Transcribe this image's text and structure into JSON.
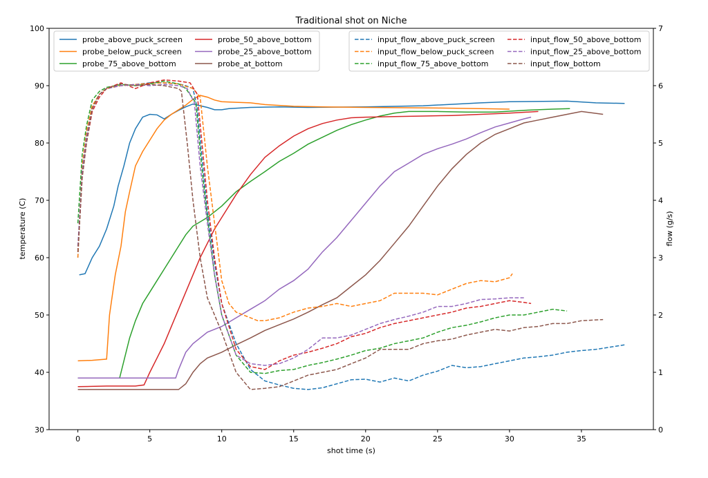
{
  "chart_data": {
    "type": "line",
    "title": "Traditional shot on Niche",
    "xlabel": "shot time (s)",
    "ylabel": "temperature (C)",
    "y2label": "flow (g/s)",
    "xlim": [
      -2,
      40
    ],
    "ylim": [
      30,
      100
    ],
    "y2lim": [
      0,
      7
    ],
    "xticks": [
      0,
      5,
      10,
      15,
      20,
      25,
      30,
      35
    ],
    "yticks": [
      30,
      40,
      50,
      60,
      70,
      80,
      90,
      100
    ],
    "y2ticks": [
      0,
      1,
      2,
      3,
      4,
      5,
      6,
      7
    ],
    "grid": false,
    "legend_left": "top-left",
    "legend_right": "top-right",
    "series": [
      {
        "name": "probe_above_puck_screen",
        "axis": "left",
        "color": "#1f77b4",
        "style": "solid",
        "x": [
          0.1,
          0.5,
          1,
          1.5,
          2,
          2.5,
          2.8,
          3.2,
          3.6,
          4,
          4.5,
          5,
          5.5,
          6,
          6.5,
          7,
          7.5,
          8,
          8.5,
          9,
          9.5,
          10,
          10.5,
          12,
          14,
          16,
          20,
          24,
          28,
          30,
          34,
          36,
          38
        ],
        "y": [
          57,
          57.2,
          60,
          62,
          65,
          69,
          72.5,
          76,
          80,
          82.5,
          84.5,
          85,
          84.9,
          84.2,
          85,
          85.7,
          86.3,
          86.8,
          86.5,
          86.2,
          85.8,
          85.8,
          86,
          86.2,
          86.3,
          86.2,
          86.3,
          86.5,
          87,
          87.2,
          87.3,
          87,
          86.9
        ]
      },
      {
        "name": "probe_below_puck_screen",
        "axis": "left",
        "color": "#ff7f0e",
        "style": "solid",
        "x": [
          0,
          1,
          2,
          2.2,
          2.6,
          3,
          3.3,
          3.6,
          4,
          4.5,
          5,
          5.5,
          6,
          6.5,
          7,
          7.5,
          8,
          8.5,
          9,
          9.5,
          10,
          11,
          12,
          13,
          15,
          17,
          20,
          25,
          28,
          30
        ],
        "y": [
          42,
          42.1,
          42.3,
          50,
          57,
          62,
          68,
          71.5,
          76,
          78.5,
          80.5,
          82.5,
          84,
          85,
          85.8,
          86.6,
          87.6,
          88.3,
          88,
          87.5,
          87.2,
          87.1,
          87,
          86.7,
          86.4,
          86.3,
          86.2,
          86.1,
          86,
          85.9
        ]
      },
      {
        "name": "probe_75_above_bottom",
        "axis": "left",
        "color": "#2ca02c",
        "style": "solid",
        "x": [
          0,
          2,
          2.9,
          3.2,
          3.6,
          4,
          4.5,
          5,
          5.5,
          6,
          6.5,
          7,
          7.5,
          8,
          9,
          10,
          11,
          12,
          13,
          14,
          15,
          16,
          17,
          18,
          19,
          20,
          21,
          22,
          23,
          25,
          27,
          29,
          31,
          33,
          34.2
        ],
        "y": [
          39,
          39,
          39,
          42,
          46,
          49,
          52,
          54,
          56,
          58,
          60,
          62,
          64,
          65.5,
          67,
          69,
          71.5,
          73.3,
          75,
          76.8,
          78.2,
          79.8,
          81,
          82.2,
          83.2,
          84,
          84.7,
          85.2,
          85.5,
          85.5,
          85.4,
          85.4,
          85.7,
          85.9,
          86
        ]
      },
      {
        "name": "probe_50_above_bottom",
        "axis": "left",
        "color": "#d62728",
        "style": "solid",
        "x": [
          0,
          2,
          4,
          4.6,
          5,
          5.5,
          6,
          6.5,
          7,
          7.5,
          8,
          8.5,
          9,
          9.5,
          10,
          11,
          12,
          13,
          14,
          15,
          16,
          17,
          18,
          19,
          20,
          22,
          24,
          26,
          28,
          30,
          32
        ],
        "y": [
          37.5,
          37.6,
          37.6,
          37.8,
          40,
          42.5,
          45,
          48,
          51,
          54,
          57,
          60,
          62.5,
          65,
          67,
          71,
          74.5,
          77.5,
          79.5,
          81.2,
          82.5,
          83.4,
          84,
          84.4,
          84.5,
          84.6,
          84.7,
          84.8,
          85,
          85.2,
          85.5
        ]
      },
      {
        "name": "probe_25_above_bottom",
        "axis": "left",
        "color": "#9467bd",
        "style": "solid",
        "x": [
          0,
          3,
          6.8,
          7,
          7.5,
          8,
          9,
          10,
          11,
          12,
          13,
          14,
          15,
          16,
          16.5,
          17,
          18,
          19,
          20,
          21,
          22,
          23,
          24,
          25,
          26,
          27,
          28,
          29,
          30,
          31,
          31.5
        ],
        "y": [
          39,
          39,
          39,
          40.5,
          43.5,
          45,
          47,
          48,
          49.5,
          51,
          52.5,
          54.5,
          56,
          58,
          59.5,
          61,
          63.5,
          66.5,
          69.5,
          72.5,
          75,
          76.5,
          78,
          79,
          79.8,
          80.7,
          81.8,
          82.8,
          83.5,
          84.2,
          84.5
        ]
      },
      {
        "name": "probe_at_bottom",
        "axis": "left",
        "color": "#8c564b",
        "style": "solid",
        "x": [
          0,
          3,
          7,
          7.5,
          8,
          8.5,
          9,
          10,
          11,
          12,
          13,
          14,
          15,
          16,
          17,
          18,
          19,
          20,
          21,
          22,
          23,
          24,
          25,
          26,
          27,
          28,
          29,
          30,
          31,
          32,
          33,
          34,
          35,
          36.5
        ],
        "y": [
          37,
          37,
          37,
          38,
          40,
          41.5,
          42.5,
          43.5,
          44.8,
          46,
          47.3,
          48.3,
          49.3,
          50.5,
          51.8,
          53,
          55,
          57,
          59.5,
          62.5,
          65.5,
          69,
          72.5,
          75.5,
          78,
          80,
          81.5,
          82.5,
          83.5,
          84,
          84.5,
          85,
          85.5,
          85
        ]
      },
      {
        "name": "input_flow_above_puck_screen",
        "axis": "right",
        "color": "#1f77b4",
        "style": "dashed",
        "x": [
          0,
          0.3,
          0.6,
          1,
          1.5,
          2,
          3,
          4,
          5,
          6,
          7,
          7.5,
          8,
          8.3,
          8.6,
          9,
          9.5,
          10,
          11,
          12,
          13,
          14,
          15,
          16,
          17,
          18,
          19,
          20,
          21,
          22,
          23,
          24,
          25,
          26,
          27,
          28,
          29,
          30,
          31,
          32,
          33,
          34,
          35,
          36,
          37,
          38
        ],
        "y": [
          3,
          4.5,
          5.1,
          5.6,
          5.85,
          5.95,
          6,
          6.02,
          6.05,
          6.05,
          6.03,
          6,
          5.95,
          5.6,
          4.8,
          3.8,
          2.9,
          2.2,
          1.5,
          1.05,
          0.85,
          0.78,
          0.72,
          0.7,
          0.73,
          0.8,
          0.87,
          0.88,
          0.83,
          0.9,
          0.85,
          0.95,
          1.02,
          1.12,
          1.08,
          1.1,
          1.15,
          1.2,
          1.25,
          1.27,
          1.3,
          1.35,
          1.38,
          1.4,
          1.44,
          1.48
        ]
      },
      {
        "name": "input_flow_below_puck_screen",
        "axis": "right",
        "color": "#ff7f0e",
        "style": "dashed",
        "x": [
          0,
          0.3,
          0.6,
          1,
          1.5,
          2,
          3,
          4,
          5,
          6,
          7,
          8,
          8.5,
          9,
          9.5,
          10,
          10.5,
          11,
          12,
          12.5,
          13,
          14,
          15,
          16,
          17,
          18,
          19,
          20,
          21,
          22,
          23,
          24,
          25,
          26,
          27,
          28,
          29,
          30,
          30.2
        ],
        "y": [
          3,
          4.6,
          5.2,
          5.65,
          5.85,
          5.95,
          6,
          6.02,
          6.04,
          6.05,
          6.03,
          5.95,
          5.8,
          4.6,
          3.6,
          2.6,
          2.2,
          2.05,
          1.95,
          1.9,
          1.9,
          1.95,
          2.05,
          2.12,
          2.15,
          2.2,
          2.15,
          2.2,
          2.25,
          2.38,
          2.38,
          2.38,
          2.35,
          2.45,
          2.55,
          2.6,
          2.58,
          2.65,
          2.72
        ]
      },
      {
        "name": "input_flow_75_above_bottom",
        "axis": "right",
        "color": "#2ca02c",
        "style": "dashed",
        "x": [
          0,
          0.3,
          0.6,
          1,
          1.5,
          2,
          3,
          4,
          5,
          6,
          7,
          7.5,
          8.2,
          8.6,
          9,
          9.5,
          10,
          11,
          12,
          13,
          14,
          15,
          16,
          17,
          18,
          19,
          20,
          21,
          22,
          23,
          24,
          25,
          26,
          27,
          28,
          29,
          30,
          31,
          32,
          33,
          34
        ],
        "y": [
          3.6,
          4.8,
          5.3,
          5.75,
          5.9,
          5.97,
          6.02,
          6.0,
          6.03,
          6.08,
          6.03,
          5.95,
          5.7,
          4.6,
          3.7,
          2.7,
          2.0,
          1.3,
          1.0,
          0.98,
          1.03,
          1.05,
          1.12,
          1.17,
          1.23,
          1.3,
          1.38,
          1.42,
          1.5,
          1.55,
          1.6,
          1.7,
          1.78,
          1.82,
          1.88,
          1.95,
          2.0,
          2.0,
          2.05,
          2.1,
          2.07
        ]
      },
      {
        "name": "input_flow_50_above_bottom",
        "axis": "right",
        "color": "#d62728",
        "style": "dashed",
        "x": [
          0,
          0.3,
          0.6,
          1,
          1.5,
          2,
          3,
          4,
          5,
          6,
          7,
          7.8,
          8.3,
          8.7,
          9,
          9.5,
          10,
          11,
          12,
          13,
          14,
          15,
          16,
          17,
          18,
          19,
          20,
          21,
          22,
          23,
          24,
          25,
          26,
          27,
          28,
          29,
          30,
          31,
          31.5
        ],
        "y": [
          3.1,
          4.4,
          5.0,
          5.55,
          5.8,
          5.95,
          6.05,
          5.95,
          6.05,
          6.1,
          6.08,
          6.05,
          5.85,
          4.8,
          4.0,
          3.0,
          2.2,
          1.4,
          1.1,
          1.05,
          1.2,
          1.3,
          1.35,
          1.42,
          1.5,
          1.62,
          1.68,
          1.78,
          1.85,
          1.9,
          1.95,
          2.0,
          2.05,
          2.12,
          2.15,
          2.2,
          2.25,
          2.22,
          2.2
        ]
      },
      {
        "name": "input_flow_25_above_bottom",
        "axis": "right",
        "color": "#9467bd",
        "style": "dashed",
        "x": [
          0,
          0.3,
          0.6,
          1,
          1.5,
          2,
          3,
          4,
          5,
          6,
          7,
          7.6,
          8.1,
          8.5,
          9,
          9.5,
          10,
          11,
          12,
          13,
          14,
          15,
          16,
          17,
          18,
          19,
          20,
          21,
          22,
          23,
          24,
          25,
          26,
          27,
          28,
          29,
          30,
          31
        ],
        "y": [
          3.2,
          4.5,
          5.1,
          5.6,
          5.85,
          5.95,
          6,
          6.02,
          6.0,
          6.02,
          6.0,
          5.95,
          5.7,
          4.6,
          3.6,
          2.7,
          2.0,
          1.3,
          1.15,
          1.12,
          1.15,
          1.25,
          1.4,
          1.6,
          1.6,
          1.65,
          1.75,
          1.85,
          1.92,
          1.98,
          2.05,
          2.15,
          2.15,
          2.2,
          2.27,
          2.28,
          2.3,
          2.3
        ]
      },
      {
        "name": "input_flow_bottom",
        "axis": "right",
        "color": "#8c564b",
        "style": "dashed",
        "x": [
          0,
          0.3,
          0.6,
          1,
          1.5,
          2,
          3,
          4,
          5,
          6,
          7,
          7.2,
          7.6,
          8,
          8.5,
          9,
          10,
          11,
          12,
          13,
          14,
          15,
          16,
          17,
          18,
          19,
          20,
          21,
          22,
          23,
          24,
          25,
          26,
          27,
          28,
          29,
          30,
          31,
          32,
          33,
          34,
          35,
          36.5
        ],
        "y": [
          3.1,
          4.4,
          5.0,
          5.6,
          5.85,
          5.95,
          6.03,
          6.0,
          6.02,
          6.0,
          5.95,
          5.9,
          5.0,
          4.0,
          3.0,
          2.3,
          1.7,
          1.0,
          0.7,
          0.72,
          0.75,
          0.85,
          0.95,
          1.0,
          1.05,
          1.15,
          1.25,
          1.4,
          1.4,
          1.4,
          1.5,
          1.55,
          1.58,
          1.65,
          1.7,
          1.75,
          1.72,
          1.78,
          1.8,
          1.85,
          1.85,
          1.9,
          1.92
        ]
      }
    ]
  }
}
